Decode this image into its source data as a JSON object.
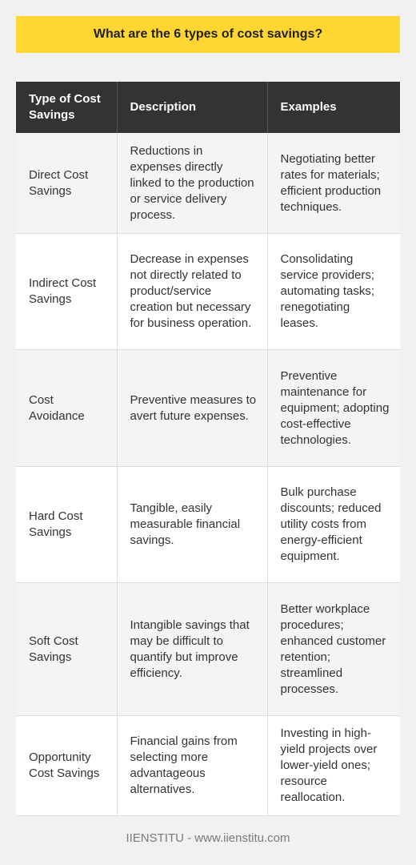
{
  "title": "What are the 6 types of cost savings?",
  "table": {
    "headers": [
      "Type of Cost Savings",
      "Description",
      "Examples"
    ],
    "rows": [
      {
        "type": "Direct Cost Savings",
        "description": "Reductions in expenses directly linked to the production or service delivery process.",
        "examples": "Negotiating better rates for materials; efficient production techniques."
      },
      {
        "type": "Indirect Cost Savings",
        "description": "Decrease in expenses not directly related to product/service creation but necessary for business operation.",
        "examples": "Consolidating service providers; automating tasks; renegotiating leases."
      },
      {
        "type": "Cost Avoidance",
        "description": "Preventive measures to avert future expenses.",
        "examples": "Preventive maintenance for equipment; adopting cost-effective technologies."
      },
      {
        "type": "Hard Cost Savings",
        "description": "Tangible, easily measurable financial savings.",
        "examples": "Bulk purchase discounts; reduced utility costs from energy-efficient equipment."
      },
      {
        "type": "Soft Cost Savings",
        "description": "Intangible savings that may be difficult to quantify but improve efficiency.",
        "examples": "Better workplace procedures; enhanced customer retention; streamlined processes."
      },
      {
        "type": "Opportunity Cost Savings",
        "description": "Financial gains from selecting more advantageous alternatives.",
        "examples": "Investing in high-yield projects over lower-yield ones; resource reallocation."
      }
    ]
  },
  "footer": "IIENSTITU - www.iienstitu.com",
  "colors": {
    "banner": "#ffd632",
    "header_bg": "#333333",
    "page_bg": "#f1f1f1"
  }
}
